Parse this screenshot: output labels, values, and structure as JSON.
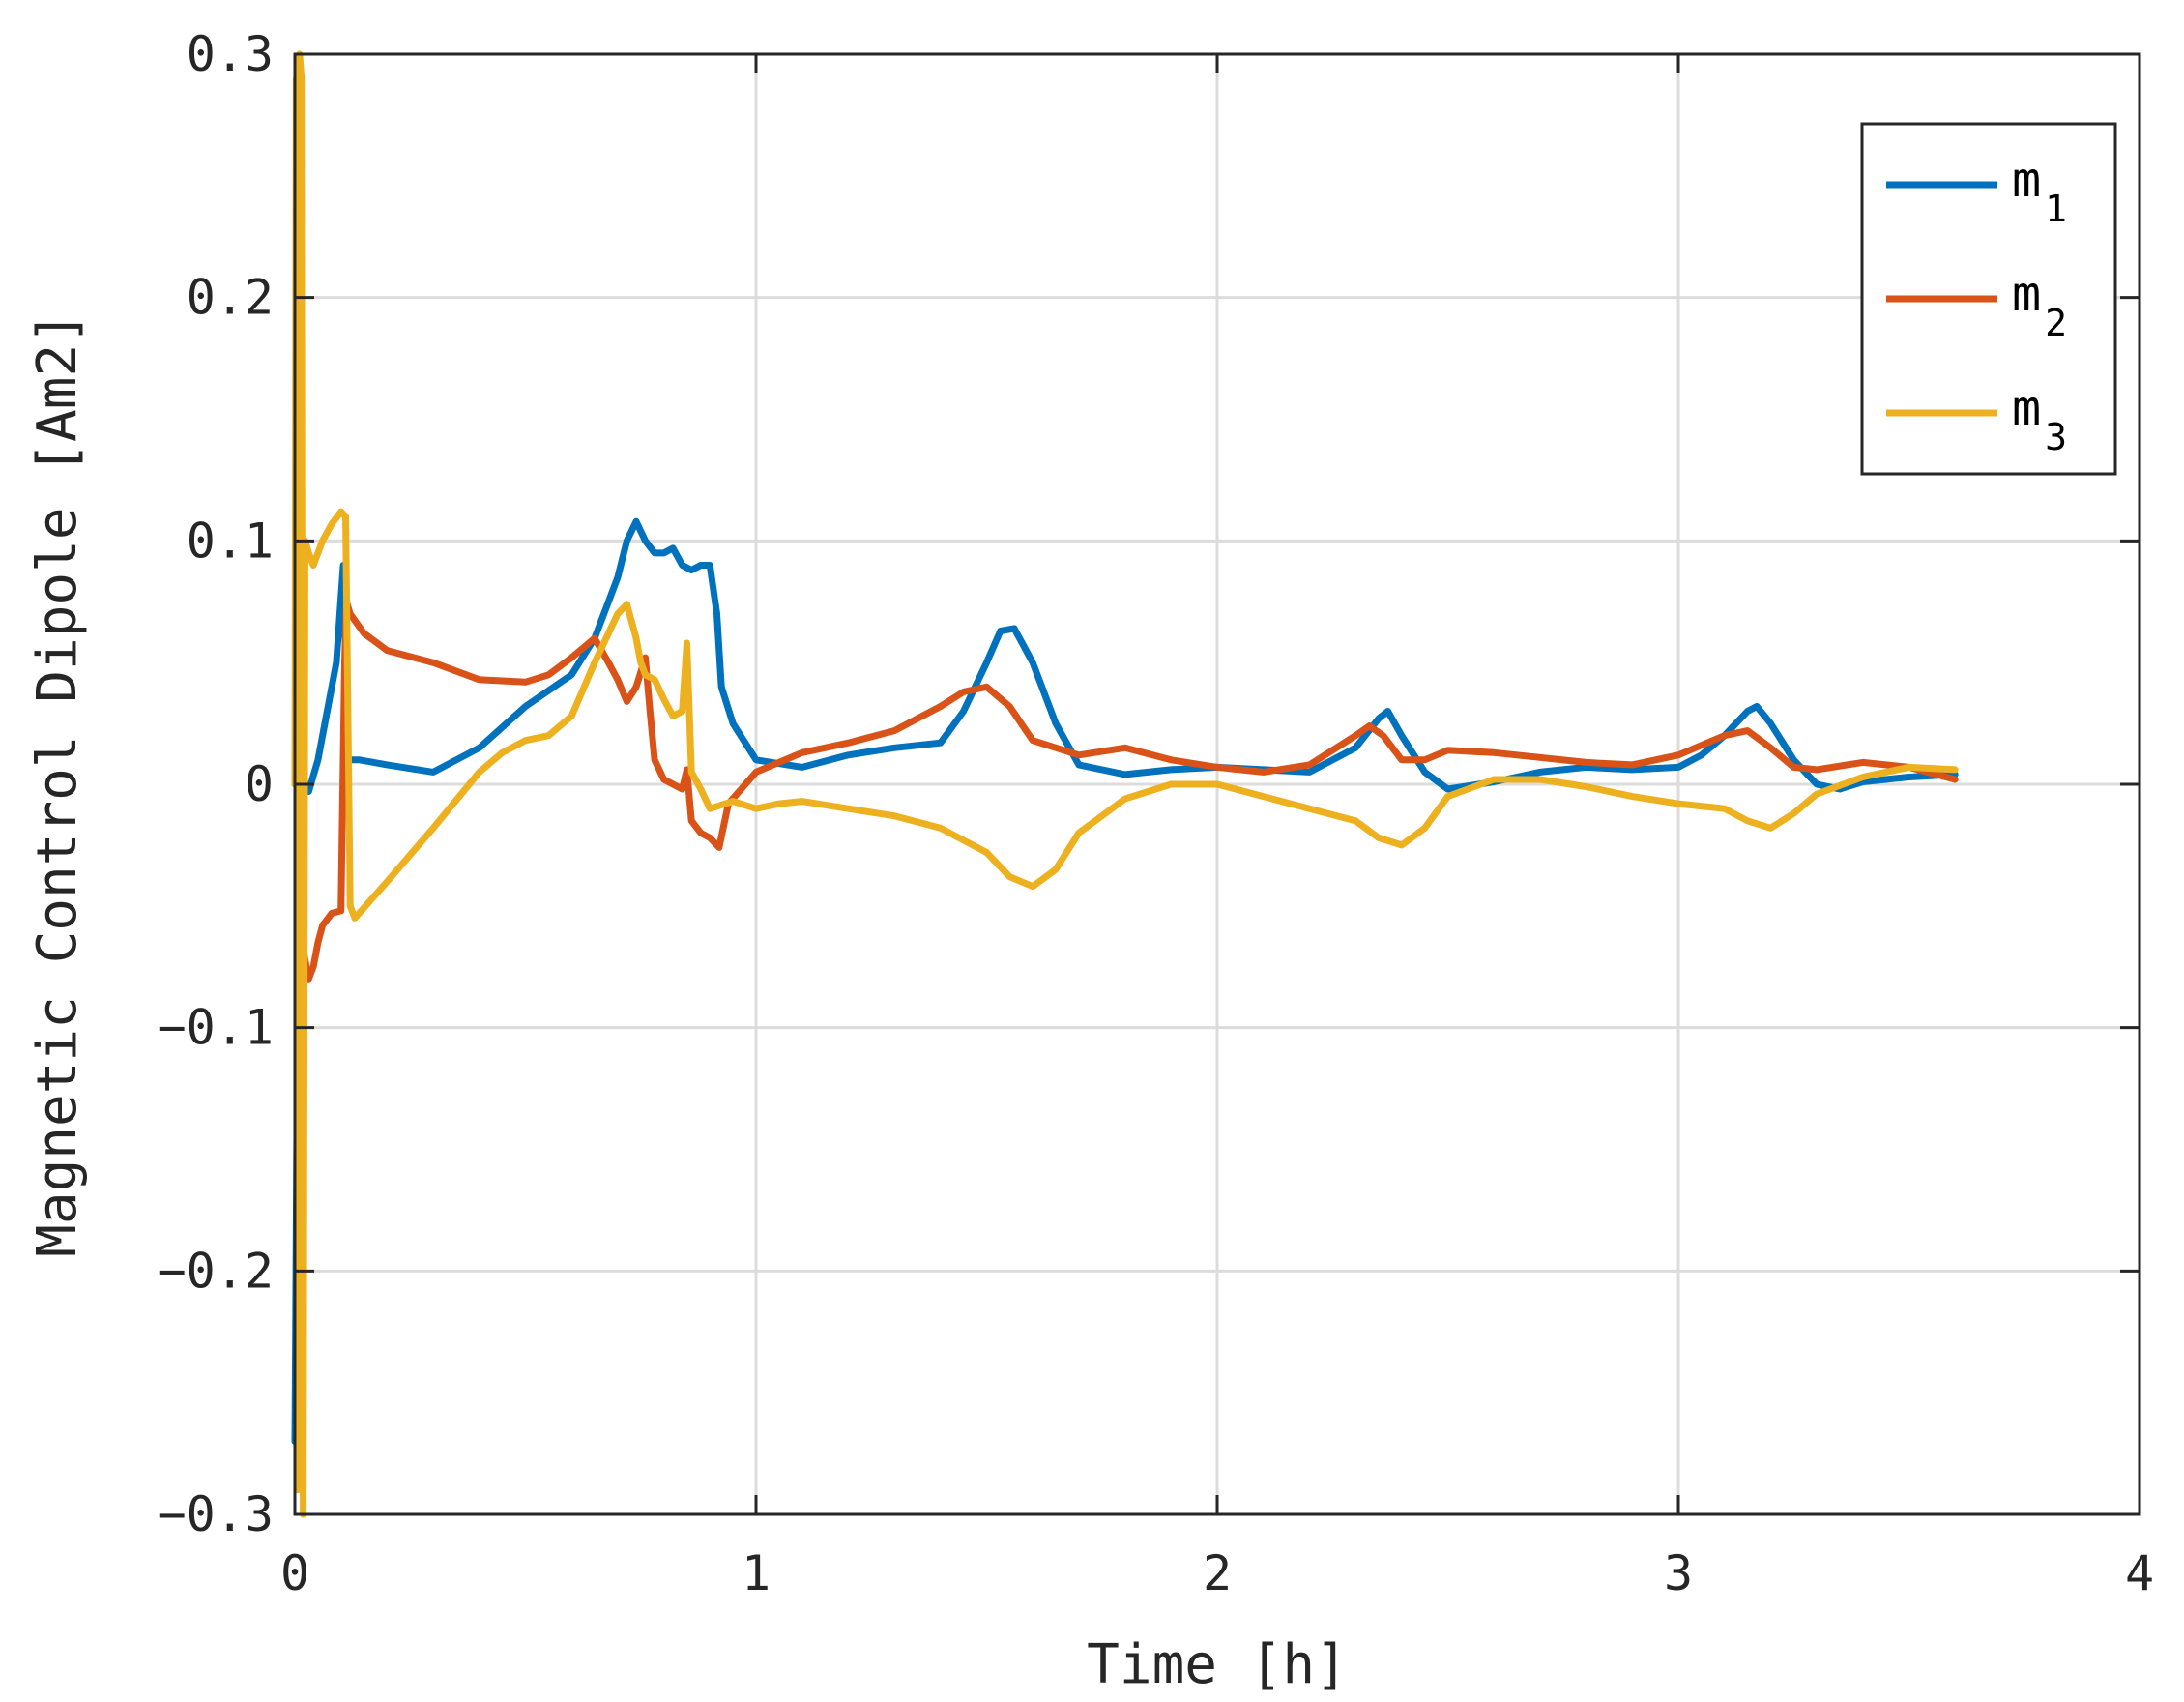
{
  "chart_data": {
    "type": "line",
    "xlabel": "Time [h]",
    "ylabel": "Magnetic Control Dipole [Am2]",
    "xlim": [
      0,
      4
    ],
    "ylim": [
      -0.3,
      0.3
    ],
    "xticks": [
      0,
      1,
      2,
      3,
      4
    ],
    "yticks": [
      -0.3,
      -0.2,
      -0.1,
      0,
      0.1,
      0.2,
      0.3
    ],
    "xtick_labels": [
      "0",
      "1",
      "2",
      "3",
      "4"
    ],
    "ytick_labels": [
      "-0.3",
      "-0.2",
      "-0.1",
      "0",
      "0.1",
      "0.2",
      "0.3"
    ],
    "grid": true,
    "legend_position": "top-right",
    "series": [
      {
        "name": "m1",
        "name_base": "m",
        "name_sub": "1",
        "color": "#0072BD",
        "x": [
          0,
          0.004,
          0.008,
          0.012,
          0.02,
          0.03,
          0.05,
          0.07,
          0.09,
          0.105,
          0.11,
          0.115,
          0.12,
          0.14,
          0.2,
          0.3,
          0.4,
          0.5,
          0.6,
          0.65,
          0.68,
          0.7,
          0.72,
          0.74,
          0.76,
          0.78,
          0.8,
          0.82,
          0.84,
          0.86,
          0.88,
          0.9,
          0.915,
          0.925,
          0.95,
          1.0,
          1.1,
          1.2,
          1.3,
          1.4,
          1.45,
          1.5,
          1.53,
          1.56,
          1.6,
          1.65,
          1.7,
          1.8,
          1.9,
          2.0,
          2.1,
          2.2,
          2.3,
          2.35,
          2.37,
          2.4,
          2.45,
          2.5,
          2.6,
          2.7,
          2.8,
          2.9,
          3.0,
          3.05,
          3.1,
          3.15,
          3.17,
          3.2,
          3.25,
          3.3,
          3.35,
          3.4,
          3.5,
          3.6
        ],
        "y": [
          -0.27,
          -0.15,
          -0.05,
          -0.005,
          0,
          -0.003,
          0.01,
          0.03,
          0.05,
          0.09,
          0.05,
          0.01,
          0.01,
          0.01,
          0.008,
          0.005,
          0.015,
          0.032,
          0.045,
          0.06,
          0.075,
          0.085,
          0.1,
          0.108,
          0.1,
          0.095,
          0.095,
          0.097,
          0.09,
          0.088,
          0.09,
          0.09,
          0.07,
          0.04,
          0.025,
          0.01,
          0.007,
          0.012,
          0.015,
          0.017,
          0.03,
          0.05,
          0.063,
          0.064,
          0.05,
          0.025,
          0.008,
          0.004,
          0.006,
          0.007,
          0.006,
          0.005,
          0.015,
          0.027,
          0.03,
          0.02,
          0.005,
          -0.002,
          0.001,
          0.005,
          0.007,
          0.006,
          0.007,
          0.012,
          0.02,
          0.03,
          0.032,
          0.025,
          0.01,
          0,
          -0.002,
          0.001,
          0.003,
          0.004
        ]
      },
      {
        "name": "m2",
        "name_base": "m",
        "name_sub": "2",
        "color": "#D95319",
        "x": [
          0,
          0.005,
          0.01,
          0.02,
          0.03,
          0.04,
          0.05,
          0.06,
          0.08,
          0.1,
          0.108,
          0.112,
          0.12,
          0.15,
          0.2,
          0.3,
          0.4,
          0.5,
          0.55,
          0.6,
          0.65,
          0.68,
          0.7,
          0.72,
          0.74,
          0.76,
          0.77,
          0.78,
          0.8,
          0.82,
          0.84,
          0.85,
          0.86,
          0.88,
          0.9,
          0.92,
          0.94,
          1.0,
          1.1,
          1.2,
          1.3,
          1.4,
          1.45,
          1.5,
          1.55,
          1.6,
          1.7,
          1.8,
          1.9,
          2.0,
          2.1,
          2.2,
          2.3,
          2.33,
          2.36,
          2.4,
          2.45,
          2.5,
          2.6,
          2.7,
          2.8,
          2.9,
          3.0,
          3.05,
          3.1,
          3.15,
          3.2,
          3.25,
          3.3,
          3.4,
          3.5,
          3.6
        ],
        "y": [
          0,
          0.02,
          -0.03,
          -0.07,
          -0.08,
          -0.075,
          -0.065,
          -0.058,
          -0.053,
          -0.052,
          0.05,
          0.075,
          0.07,
          0.062,
          0.055,
          0.05,
          0.043,
          0.042,
          0.045,
          0.052,
          0.06,
          0.05,
          0.043,
          0.034,
          0.04,
          0.052,
          0.03,
          0.01,
          0.002,
          0,
          -0.002,
          0.006,
          -0.015,
          -0.02,
          -0.022,
          -0.026,
          -0.008,
          0.005,
          0.013,
          0.017,
          0.022,
          0.032,
          0.038,
          0.04,
          0.032,
          0.018,
          0.012,
          0.015,
          0.01,
          0.007,
          0.005,
          0.008,
          0.02,
          0.024,
          0.02,
          0.01,
          0.01,
          0.014,
          0.013,
          0.011,
          0.009,
          0.008,
          0.012,
          0.016,
          0.02,
          0.022,
          0.015,
          0.007,
          0.006,
          0.009,
          0.007,
          0.002
        ]
      },
      {
        "name": "m3",
        "name_base": "m",
        "name_sub": "3",
        "color": "#EDB120",
        "x": [
          0,
          0.003,
          0.006,
          0.01,
          0.014,
          0.018,
          0.022,
          0.03,
          0.04,
          0.06,
          0.08,
          0.1,
          0.11,
          0.115,
          0.12,
          0.13,
          0.2,
          0.3,
          0.4,
          0.45,
          0.5,
          0.55,
          0.6,
          0.65,
          0.7,
          0.72,
          0.74,
          0.75,
          0.76,
          0.78,
          0.8,
          0.82,
          0.84,
          0.85,
          0.86,
          0.88,
          0.9,
          0.95,
          1.0,
          1.05,
          1.1,
          1.2,
          1.3,
          1.4,
          1.5,
          1.55,
          1.6,
          1.65,
          1.7,
          1.8,
          1.9,
          2.0,
          2.1,
          2.2,
          2.3,
          2.35,
          2.4,
          2.45,
          2.5,
          2.6,
          2.7,
          2.8,
          2.9,
          3.0,
          3.1,
          3.15,
          3.2,
          3.25,
          3.3,
          3.4,
          3.5,
          3.6
        ],
        "y": [
          0,
          0.29,
          -0.29,
          0.3,
          0.29,
          -0.3,
          0.1,
          0.095,
          0.09,
          0.1,
          0.107,
          0.112,
          0.11,
          0.03,
          -0.05,
          -0.055,
          -0.04,
          -0.018,
          0.005,
          0.013,
          0.018,
          0.02,
          0.028,
          0.05,
          0.07,
          0.074,
          0.06,
          0.05,
          0.045,
          0.043,
          0.035,
          0.028,
          0.03,
          0.058,
          0.005,
          -0.002,
          -0.01,
          -0.007,
          -0.01,
          -0.008,
          -0.007,
          -0.01,
          -0.013,
          -0.018,
          -0.028,
          -0.038,
          -0.042,
          -0.035,
          -0.02,
          -0.006,
          0,
          0,
          -0.005,
          -0.01,
          -0.015,
          -0.022,
          -0.025,
          -0.018,
          -0.005,
          0.002,
          0.002,
          -0.001,
          -0.005,
          -0.008,
          -0.01,
          -0.015,
          -0.018,
          -0.012,
          -0.004,
          0.003,
          0.007,
          0.006
        ]
      }
    ]
  }
}
